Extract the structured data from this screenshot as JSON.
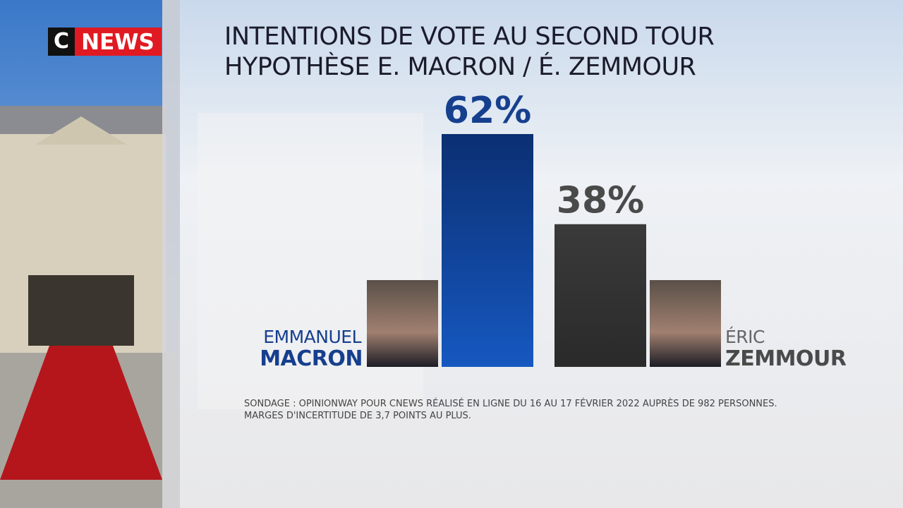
{
  "channel": {
    "c": "C",
    "news": "NEWS"
  },
  "chart_data": {
    "type": "bar",
    "title": "INTENTIONS DE VOTE AU SECOND TOUR",
    "subtitle": "HYPOTHÈSE E. MACRON / É. ZEMMOUR",
    "first_names": [
      "EMMANUEL",
      "ÉRIC"
    ],
    "categories": [
      "MACRON",
      "ZEMMOUR"
    ],
    "values": [
      62,
      38
    ],
    "value_labels": [
      "62%",
      "38%"
    ],
    "colors": [
      "#0b3d8f",
      "#333333"
    ],
    "label_colors": [
      "#163f8e",
      "#4a4a4a"
    ],
    "notes": [
      "SONDAGE : OPINIONWAY POUR CNEWS  RÉALISÉ EN LIGNE DU 16 AU 17 FÉVRIER 2022 AUPRÈS DE 982 PERSONNES.",
      "MARGES D'INCERTITUDE DE 3,7 POINTS AU PLUS."
    ]
  }
}
